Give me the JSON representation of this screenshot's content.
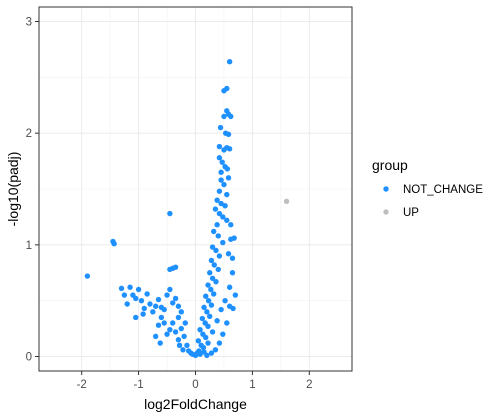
{
  "chart_data": {
    "type": "scatter",
    "xlabel": "log2FoldChange",
    "ylabel": "-log10(padj)",
    "xlim": [
      -2.75,
      2.75
    ],
    "ylim": [
      -0.13,
      3.13
    ],
    "x_ticks": [
      -2,
      -1,
      0,
      1,
      2
    ],
    "y_ticks": [
      0,
      1,
      2,
      3
    ],
    "grid": true,
    "legend": {
      "title": "group",
      "position": "right",
      "entries": [
        {
          "label": "NOT_CHANGE",
          "color": "#1E90FF"
        },
        {
          "label": "UP",
          "color": "#BEBEBE"
        }
      ]
    },
    "series": [
      {
        "name": "NOT_CHANGE",
        "color": "#1E90FF",
        "points": [
          [
            -1.9,
            0.72
          ],
          [
            -1.45,
            1.03
          ],
          [
            -1.43,
            1.01
          ],
          [
            -0.45,
            1.28
          ],
          [
            -0.4,
            0.79
          ],
          [
            -0.35,
            0.8
          ],
          [
            -0.45,
            0.78
          ],
          [
            -1.3,
            0.61
          ],
          [
            -1.25,
            0.55
          ],
          [
            -1.2,
            0.47
          ],
          [
            -1.15,
            0.62
          ],
          [
            -1.1,
            0.55
          ],
          [
            -1.05,
            0.52
          ],
          [
            -1.0,
            0.6
          ],
          [
            -0.95,
            0.5
          ],
          [
            -0.9,
            0.43
          ],
          [
            -0.85,
            0.56
          ],
          [
            -0.8,
            0.47
          ],
          [
            -0.75,
            0.4
          ],
          [
            -0.7,
            0.45
          ],
          [
            -0.65,
            0.28
          ],
          [
            -0.6,
            0.35
          ],
          [
            -0.65,
            0.51
          ],
          [
            -0.6,
            0.44
          ],
          [
            -0.55,
            0.42
          ],
          [
            -0.5,
            0.55
          ],
          [
            -0.45,
            0.6
          ],
          [
            -0.4,
            0.48
          ],
          [
            -0.35,
            0.52
          ],
          [
            -0.3,
            0.45
          ],
          [
            -0.3,
            0.35
          ],
          [
            -0.25,
            0.4
          ],
          [
            -0.55,
            0.3
          ],
          [
            -0.5,
            0.2
          ],
          [
            -0.45,
            0.24
          ],
          [
            -0.4,
            0.3
          ],
          [
            -0.35,
            0.22
          ],
          [
            -0.3,
            0.15
          ],
          [
            -0.25,
            0.25
          ],
          [
            -0.2,
            0.18
          ],
          [
            -0.28,
            0.1
          ],
          [
            -0.22,
            0.06
          ],
          [
            -0.15,
            0.1
          ],
          [
            -0.12,
            0.05
          ],
          [
            -0.08,
            0.03
          ],
          [
            -0.05,
            0.02
          ],
          [
            0.0,
            0.01
          ],
          [
            -1.05,
            0.35
          ],
          [
            -0.92,
            0.38
          ],
          [
            -0.7,
            0.18
          ],
          [
            -0.62,
            0.12
          ],
          [
            -0.18,
            0.3
          ],
          [
            0.6,
            2.64
          ],
          [
            0.55,
            2.4
          ],
          [
            0.5,
            2.38
          ],
          [
            0.55,
            2.2
          ],
          [
            0.58,
            2.17
          ],
          [
            0.62,
            2.15
          ],
          [
            0.5,
            2.15
          ],
          [
            0.53,
            2.0
          ],
          [
            0.58,
            1.99
          ],
          [
            0.44,
            2.05
          ],
          [
            0.42,
            1.88
          ],
          [
            0.5,
            1.85
          ],
          [
            0.55,
            1.87
          ],
          [
            0.6,
            1.86
          ],
          [
            0.42,
            1.78
          ],
          [
            0.47,
            1.74
          ],
          [
            0.52,
            1.7
          ],
          [
            0.56,
            1.68
          ],
          [
            0.45,
            1.65
          ],
          [
            0.58,
            1.6
          ],
          [
            0.45,
            1.58
          ],
          [
            0.5,
            1.54
          ],
          [
            0.42,
            1.48
          ],
          [
            0.55,
            1.45
          ],
          [
            0.38,
            1.4
          ],
          [
            0.45,
            1.37
          ],
          [
            0.52,
            1.35
          ],
          [
            0.35,
            1.32
          ],
          [
            0.42,
            1.28
          ],
          [
            0.48,
            1.25
          ],
          [
            0.55,
            1.22
          ],
          [
            0.62,
            1.18
          ],
          [
            0.68,
            1.06
          ],
          [
            0.62,
            1.05
          ],
          [
            0.38,
            1.18
          ],
          [
            0.32,
            1.12
          ],
          [
            0.4,
            1.08
          ],
          [
            0.48,
            1.02
          ],
          [
            0.3,
            0.98
          ],
          [
            0.36,
            0.95
          ],
          [
            0.42,
            0.9
          ],
          [
            0.58,
            0.92
          ],
          [
            0.65,
            0.88
          ],
          [
            0.28,
            0.86
          ],
          [
            0.33,
            0.82
          ],
          [
            0.4,
            0.78
          ],
          [
            0.25,
            0.75
          ],
          [
            0.3,
            0.7
          ],
          [
            0.36,
            0.67
          ],
          [
            0.22,
            0.64
          ],
          [
            0.27,
            0.6
          ],
          [
            0.32,
            0.56
          ],
          [
            0.18,
            0.54
          ],
          [
            0.23,
            0.5
          ],
          [
            0.28,
            0.46
          ],
          [
            0.15,
            0.44
          ],
          [
            0.2,
            0.4
          ],
          [
            0.25,
            0.36
          ],
          [
            0.12,
            0.34
          ],
          [
            0.17,
            0.3
          ],
          [
            0.22,
            0.27
          ],
          [
            0.08,
            0.24
          ],
          [
            0.13,
            0.2
          ],
          [
            0.18,
            0.17
          ],
          [
            0.05,
            0.14
          ],
          [
            0.1,
            0.1
          ],
          [
            0.14,
            0.08
          ],
          [
            0.06,
            0.05
          ],
          [
            0.03,
            0.03
          ],
          [
            0.08,
            0.02
          ],
          [
            0.15,
            0.04
          ],
          [
            0.22,
            0.12
          ],
          [
            0.3,
            0.22
          ],
          [
            0.38,
            0.32
          ],
          [
            0.45,
            0.42
          ],
          [
            0.52,
            0.5
          ],
          [
            0.6,
            0.62
          ],
          [
            0.65,
            0.75
          ],
          [
            0.6,
            0.45
          ],
          [
            0.55,
            0.3
          ],
          [
            0.48,
            0.2
          ],
          [
            0.42,
            0.12
          ],
          [
            0.35,
            0.06
          ],
          [
            0.28,
            0.03
          ],
          [
            0.2,
            0.01
          ],
          [
            0.66,
            0.43
          ],
          [
            0.7,
            0.55
          ]
        ]
      },
      {
        "name": "UP",
        "color": "#BEBEBE",
        "points": [
          [
            1.6,
            1.39
          ]
        ]
      }
    ]
  }
}
